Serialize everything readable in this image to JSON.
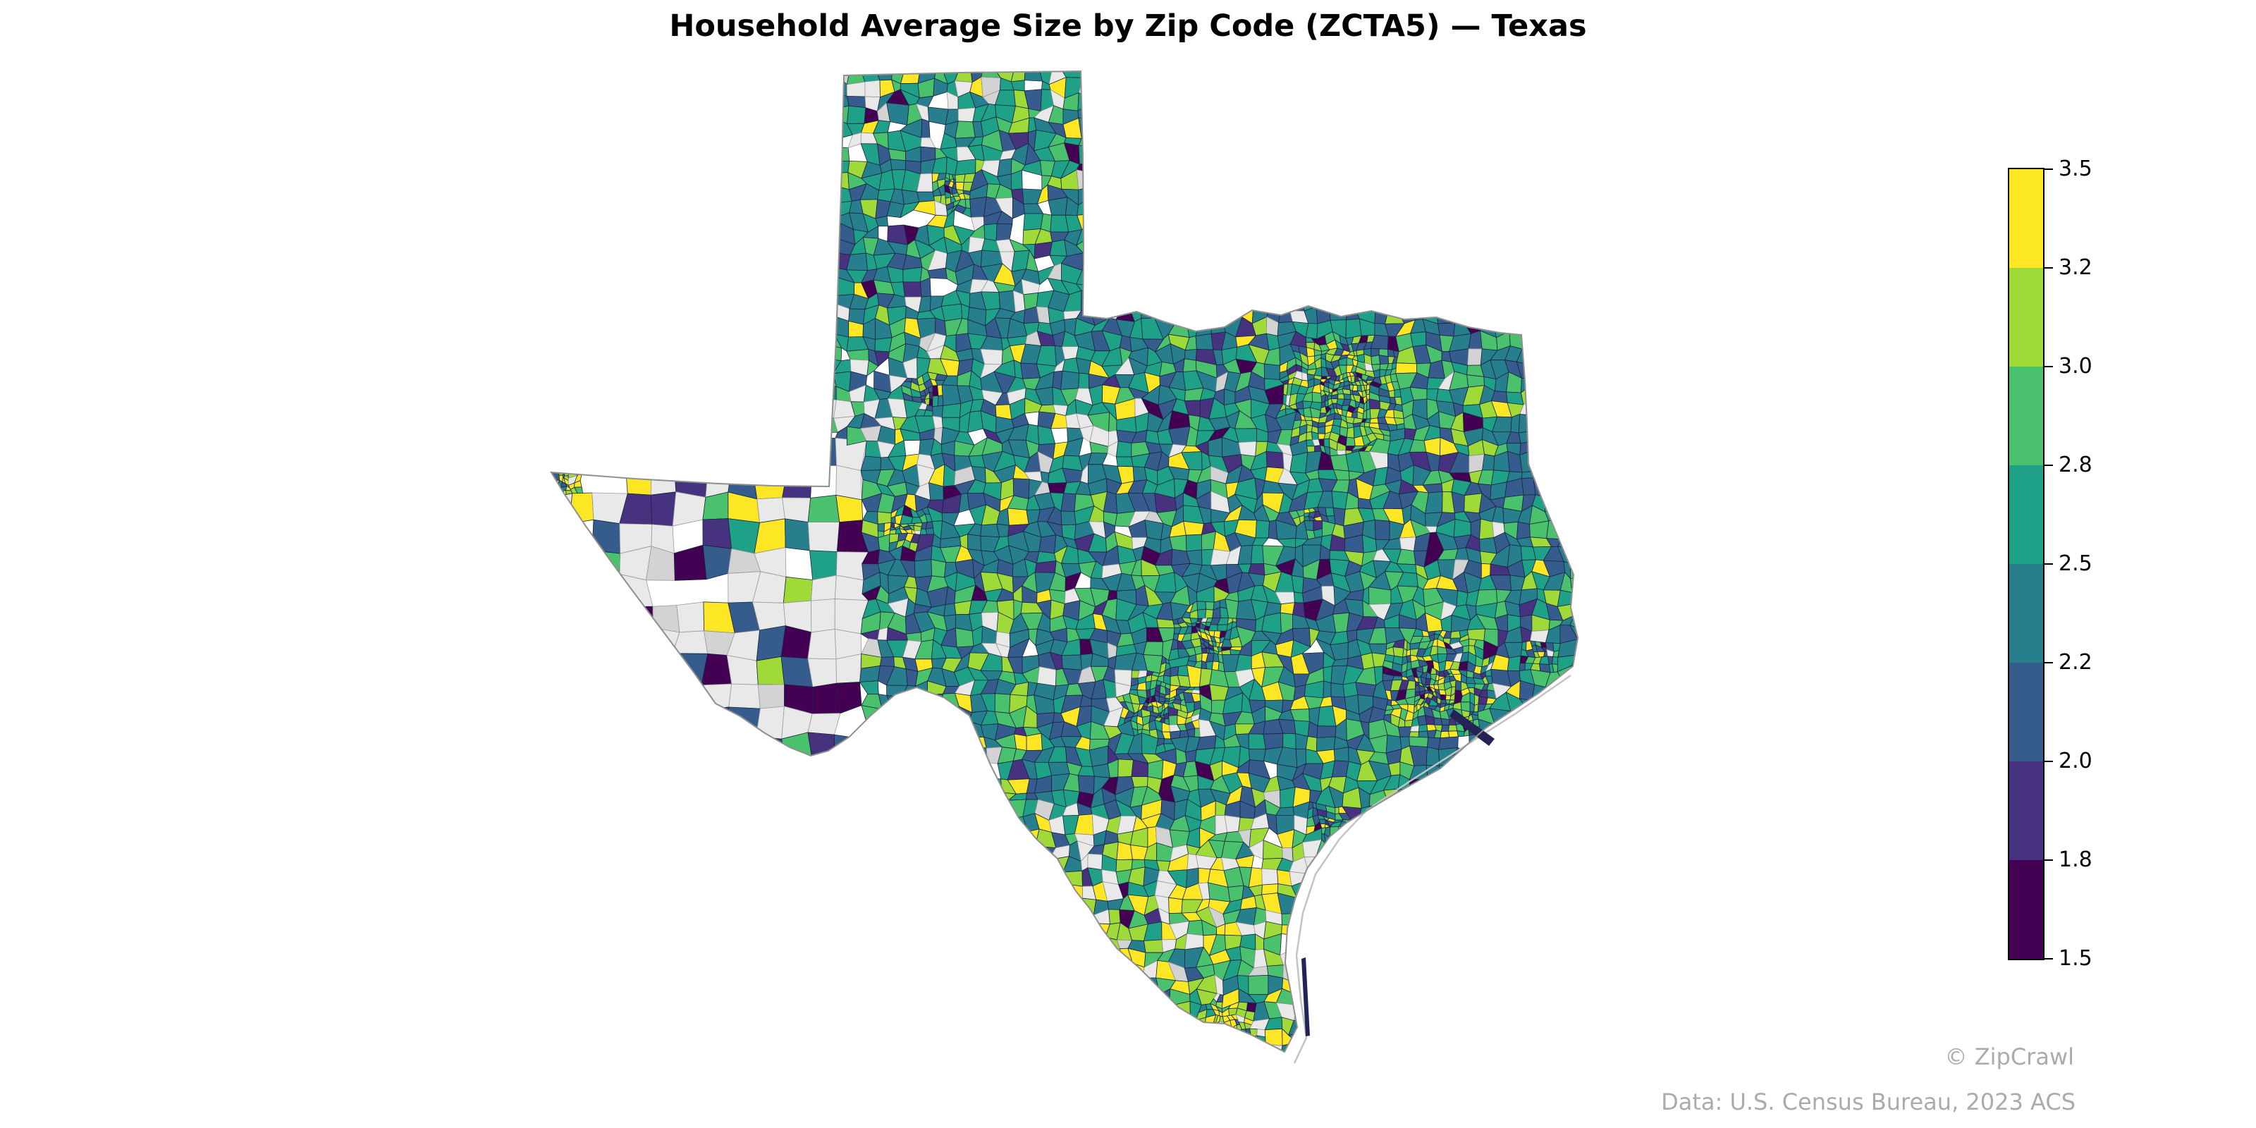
{
  "title": "Household Average Size by Zip Code (ZCTA5) — Texas",
  "attribution": {
    "line1": "© ZipCrawl",
    "line2": "Data: U.S. Census Bureau, 2023 ACS"
  },
  "colorbar": {
    "tick_labels": [
      "3.5",
      "3.2",
      "3.0",
      "2.8",
      "2.5",
      "2.2",
      "2.0",
      "1.8",
      "1.5"
    ],
    "segment_colors_top_to_bottom": [
      "#fde725",
      "#a0da39",
      "#4ac16d",
      "#1fa187",
      "#277f8e",
      "#365c8d",
      "#46327e",
      "#440154"
    ]
  },
  "chart_data": {
    "type": "choropleth",
    "title": "Household Average Size by Zip Code (ZCTA5) — Texas",
    "region": "Texas, USA",
    "geographic_unit": "ZCTA5 (ZIP Code Tabulation Area)",
    "variable": "Average household size (persons per household)",
    "source": "U.S. Census Bureau, 2023 ACS",
    "watermark": "© ZipCrawl",
    "colormap": "viridis, 8 discrete classes",
    "value_range": [
      1.5,
      3.5
    ],
    "class_breaks": [
      1.5,
      1.8,
      2.0,
      2.2,
      2.5,
      2.8,
      3.0,
      3.2,
      3.5
    ],
    "class_colors_low_to_high": [
      "#440154",
      "#46327e",
      "#365c8d",
      "#277f8e",
      "#1fa187",
      "#4ac16d",
      "#a0da39",
      "#fde725"
    ],
    "no_data_color": "#e9e9e9",
    "legend_position": "right vertical colorbar",
    "grid": false,
    "visual_pattern": "Most ZCTAs fall in the 2.2-3.0 classes (teal/green). Highest classes (3.2-3.5, yellow) cluster in South Texas / Rio Grande Valley, border cities and urban cores; lowest classes (1.5-2.0, dark purple/blue) plus gray no-data polygons dominate sparsely populated West Texas and the Big Bend region."
  }
}
